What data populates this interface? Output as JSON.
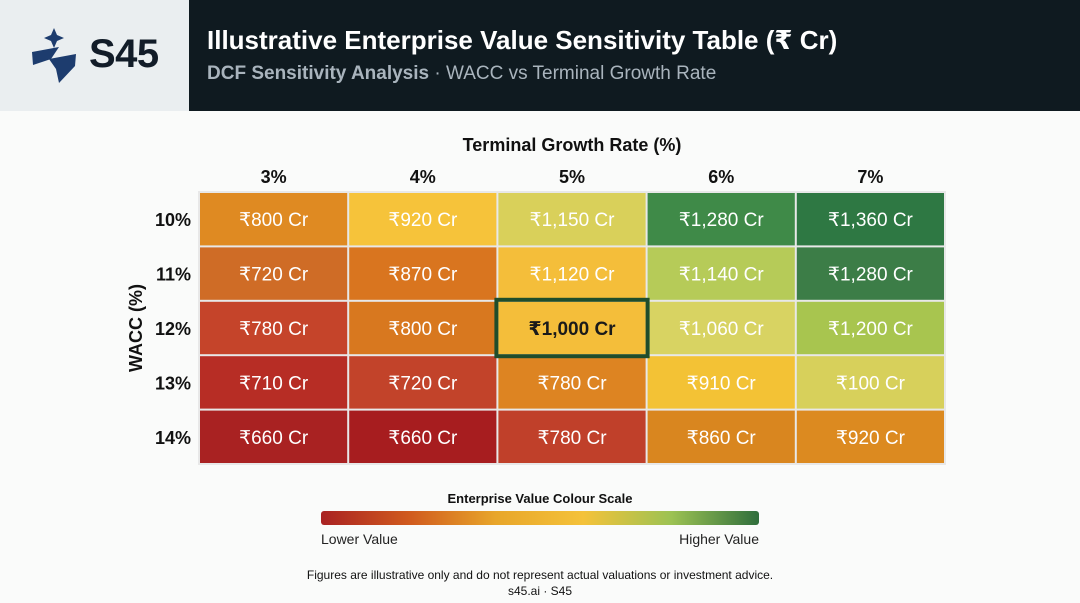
{
  "brand": {
    "name": "S45"
  },
  "header": {
    "title": "Illustrative Enterprise Value Sensitivity Table (₹ Cr)",
    "subtitle_bold": "DCF Sensitivity Analysis",
    "subtitle_rest": " · WACC vs Terminal Growth Rate"
  },
  "colors": {
    "header_bg": "#0f1a20",
    "logo_bg": "#eaeef0",
    "brand_navy": "#1d3c6e",
    "highlight_border": "#1f4d2b"
  },
  "chart_data": {
    "type": "heatmap",
    "xlabel": "Terminal Growth Rate (%)",
    "ylabel": "WACC (%)",
    "x": [
      "3%",
      "4%",
      "5%",
      "6%",
      "7%"
    ],
    "y": [
      "10%",
      "11%",
      "12%",
      "13%",
      "14%"
    ],
    "cells": [
      [
        "₹800 Cr",
        "₹920 Cr",
        "₹1,150 Cr",
        "₹1,280 Cr",
        "₹1,360 Cr"
      ],
      [
        "₹720 Cr",
        "₹870 Cr",
        "₹1,120 Cr",
        "₹1,140 Cr",
        "₹1,280 Cr"
      ],
      [
        "₹780 Cr",
        "₹800 Cr",
        "₹1,000 Cr",
        "₹1,060 Cr",
        "₹1,200 Cr"
      ],
      [
        "₹710 Cr",
        "₹720 Cr",
        "₹780 Cr",
        "₹910 Cr",
        "₹100 Cr"
      ],
      [
        "₹660 Cr",
        "₹660 Cr",
        "₹780 Cr",
        "₹860 Cr",
        "₹920 Cr"
      ]
    ],
    "cell_colors": [
      [
        "#df8a22",
        "#f6c33a",
        "#d9d05a",
        "#3f8a48",
        "#2e7843"
      ],
      [
        "#cf6c26",
        "#d9751f",
        "#f4be3a",
        "#b6cb58",
        "#3c7d47"
      ],
      [
        "#c5442a",
        "#d8781f",
        "#f4be3a",
        "#d8d362",
        "#a8c54f"
      ],
      [
        "#b72d25",
        "#c2432a",
        "#dd8422",
        "#f3c235",
        "#d7d05b"
      ],
      [
        "#a92222",
        "#a71d1f",
        "#c0402a",
        "#d9861f",
        "#dc8a20"
      ]
    ],
    "highlight": {
      "row": 2,
      "col": 2
    },
    "colorscale": {
      "title": "Enterprise Value Colour Scale",
      "low_label": "Lower Value",
      "high_label": "Higher Value",
      "colors": [
        "#a92222",
        "#d05a1e",
        "#e8a62a",
        "#f4c23a",
        "#9cc253",
        "#2f6e3c"
      ]
    }
  },
  "footer": {
    "disclaimer": "Figures are illustrative only and do not represent actual valuations or investment advice.",
    "site": "s45.ai · S45"
  }
}
